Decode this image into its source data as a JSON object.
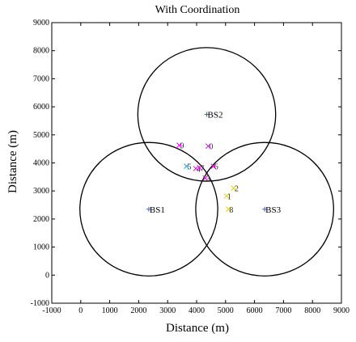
{
  "chart_data": {
    "type": "scatter",
    "title": "With Coordination",
    "xlabel": "Distance (m)",
    "ylabel": "Distance (m)",
    "xlim": [
      -1000,
      9000
    ],
    "ylim": [
      -1000,
      9000
    ],
    "xticks": [
      "-1000",
      "0",
      "1000",
      "2000",
      "3000",
      "4000",
      "5000",
      "6000",
      "7000",
      "8000",
      "9000"
    ],
    "yticks": [
      "-1000",
      "0",
      "1000",
      "2000",
      "3000",
      "4000",
      "5000",
      "6000",
      "7000",
      "8000",
      "9000"
    ],
    "grid": false,
    "base_stations": [
      {
        "label": "BS1",
        "x": 2350,
        "y": 2350
      },
      {
        "label": "BS2",
        "x": 4350,
        "y": 5730
      },
      {
        "label": "BS3",
        "x": 6350,
        "y": 2350
      }
    ],
    "coverage_radius": 2380,
    "users": [
      {
        "label": "1",
        "x": 5030,
        "y": 2820,
        "color": "#e0d000"
      },
      {
        "label": "2",
        "x": 5280,
        "y": 3100,
        "color": "#e0d000"
      },
      {
        "label": "3",
        "x": 4300,
        "y": 3460,
        "color": "#ff00ff"
      },
      {
        "label": "4",
        "x": 3970,
        "y": 3800,
        "color": "#ff00ff"
      },
      {
        "label": "5",
        "x": 3650,
        "y": 3880,
        "color": "#00b0e0"
      },
      {
        "label": "6",
        "x": 4580,
        "y": 3880,
        "color": "#ff00ff"
      },
      {
        "label": "7",
        "x": 4100,
        "y": 3830,
        "color": "#ff00ff"
      },
      {
        "label": "8",
        "x": 5100,
        "y": 2350,
        "color": "#e0d000"
      },
      {
        "label": "9",
        "x": 3400,
        "y": 4630,
        "color": "#ff00ff"
      },
      {
        "label": "0",
        "x": 4400,
        "y": 4600,
        "color": "#ff00ff"
      }
    ],
    "colors": {
      "circle": "#000000",
      "bs_marker": "#4060c0"
    }
  }
}
